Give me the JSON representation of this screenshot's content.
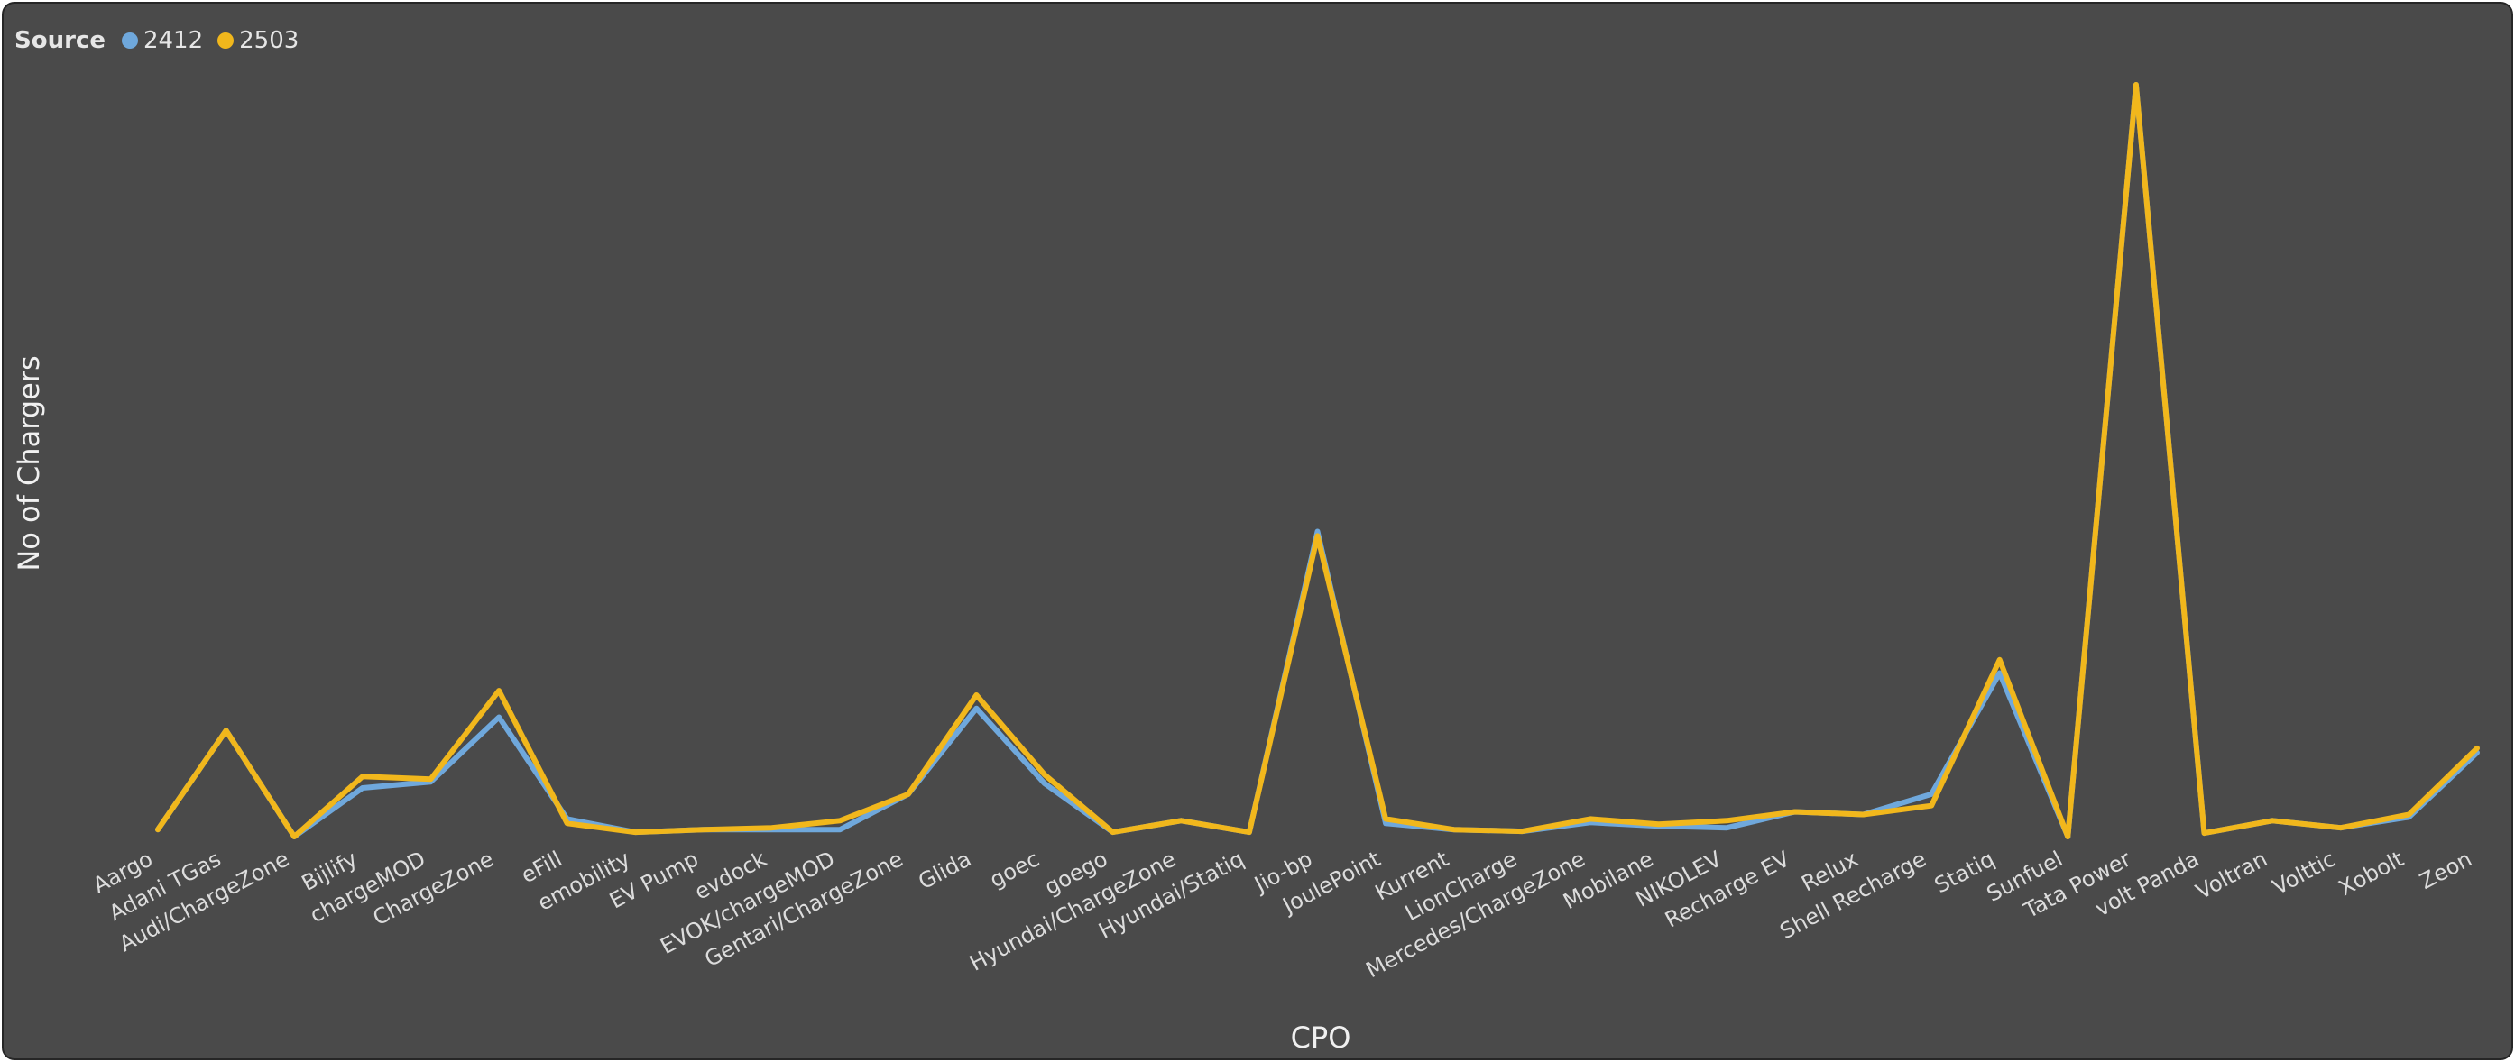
{
  "chart_data": {
    "type": "line",
    "title": "",
    "xlabel": "CPO",
    "ylabel": "No of Chargers",
    "legend": {
      "title": "Source",
      "placement": "top-left"
    },
    "grid": false,
    "ylim": [
      0,
      850
    ],
    "categories": [
      "Aargo",
      "Adani TGas",
      "Audi/ChargeZone",
      "Bijlify",
      "chargeMOD",
      "ChargeZone",
      "eFill",
      "emobility",
      "EV Pump",
      "evdock",
      "EVOK/chargeMOD",
      "Gentari/ChargeZone",
      "Glida",
      "goec",
      "goego",
      "Hyundai/ChargeZone",
      "Hyundai/Statiq",
      "Jio-bp",
      "JoulePoint",
      "Kurrent",
      "LionCharge",
      "Mercedes/ChargeZone",
      "Mobilane",
      "NIKOLEV",
      "Recharge EV",
      "Relux",
      "Shell Recharge",
      "Statiq",
      "Sunfuel",
      "Tata Power",
      "volt Panda",
      "Voltran",
      "Volttic",
      "Xobolt",
      "Zeon"
    ],
    "series": [
      {
        "name": "2412",
        "color": "#6fa8dc",
        "values": [
          8,
          120,
          0,
          55,
          62,
          135,
          20,
          5,
          8,
          8,
          8,
          48,
          145,
          60,
          5,
          18,
          5,
          345,
          15,
          8,
          6,
          16,
          12,
          10,
          28,
          25,
          48,
          185,
          0,
          850,
          4,
          18,
          10,
          22,
          95
        ]
      },
      {
        "name": "2503",
        "color": "#f1b71c",
        "values": [
          8,
          120,
          0,
          68,
          65,
          165,
          15,
          5,
          8,
          10,
          18,
          48,
          160,
          70,
          5,
          18,
          5,
          340,
          20,
          8,
          6,
          20,
          14,
          18,
          28,
          25,
          35,
          200,
          0,
          850,
          4,
          18,
          10,
          25,
          100
        ]
      }
    ]
  }
}
